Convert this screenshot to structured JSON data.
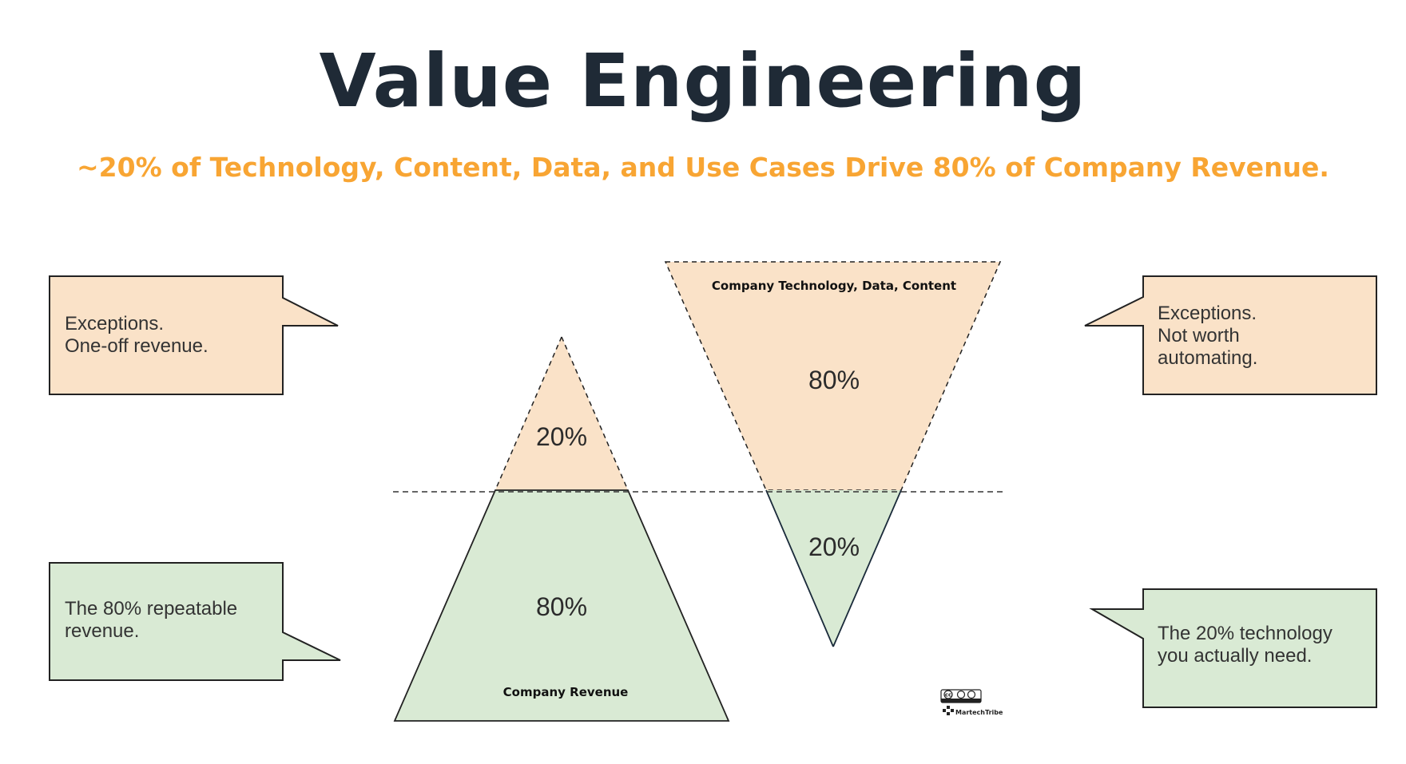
{
  "header": {
    "title": "Value Engineering",
    "subtitle": "~20% of Technology, Content, Data, and Use Cases Drive 80% of Company Revenue."
  },
  "colors": {
    "title": "#1f2a36",
    "subtitle": "#f8a533",
    "peach": "#fae2c8",
    "green": "#d9ead4",
    "outline": "#222222"
  },
  "pyramid": {
    "label": "Company Revenue",
    "top_percent": "20%",
    "bottom_percent": "80%"
  },
  "inverted_pyramid": {
    "label": "Company Technology, Data, Content",
    "top_percent": "80%",
    "bottom_percent": "20%"
  },
  "callouts": {
    "top_left": "Exceptions.\nOne-off revenue.",
    "bottom_left": "The 80% repeatable\nrevenue.",
    "top_right": "Exceptions.\nNot worth\nautomating.",
    "bottom_right": "The 20% technology\nyou actually need."
  },
  "license": {
    "badge": "cc",
    "brand": "MartechTribe"
  }
}
